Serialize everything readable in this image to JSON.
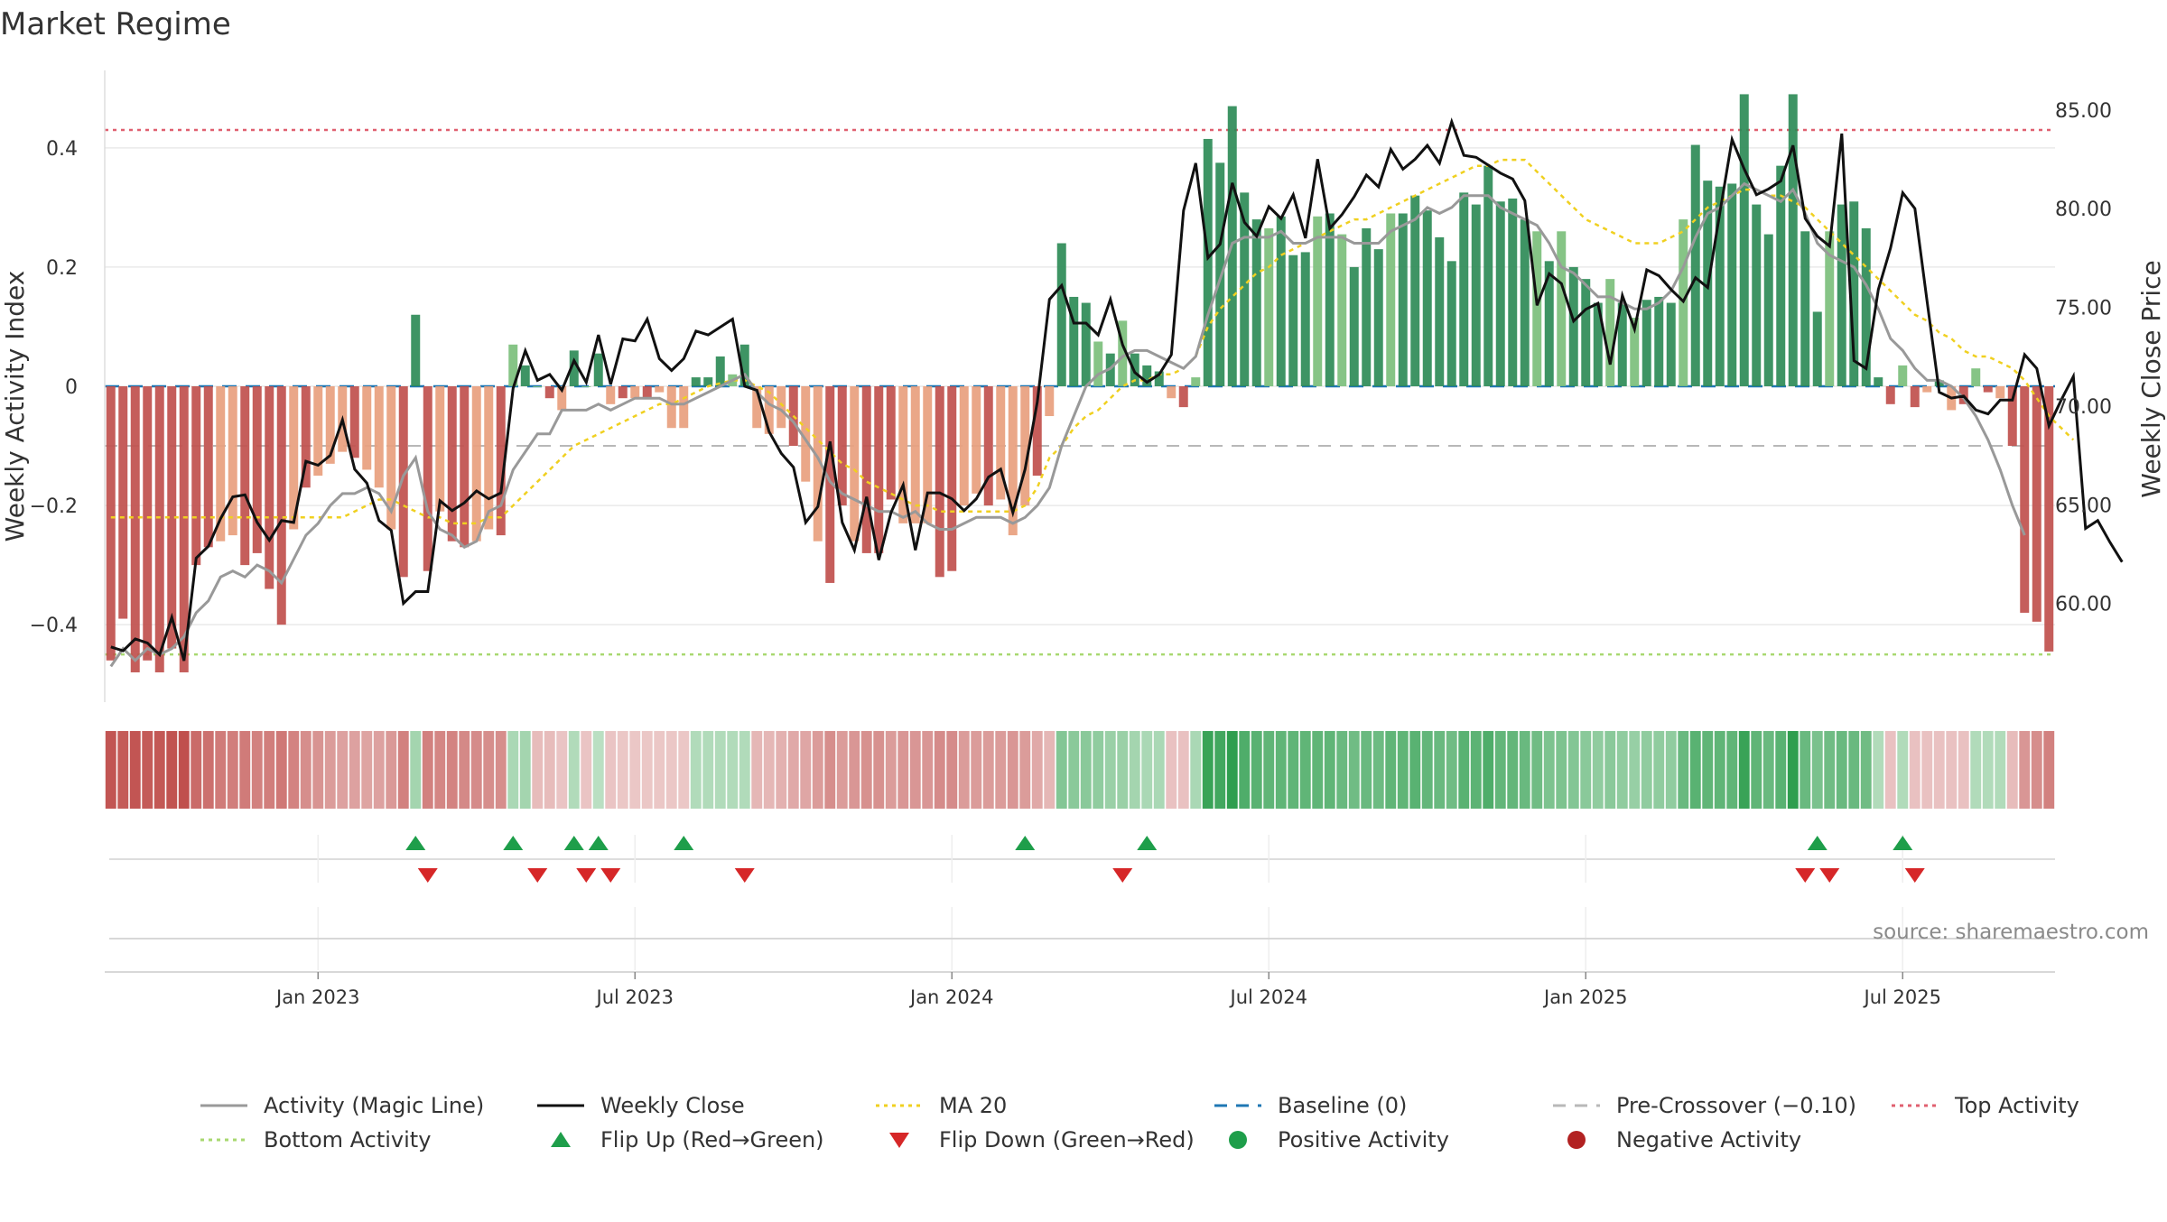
{
  "page": {
    "title": "Market Regime",
    "source": "source: sharemaestro.com"
  },
  "chart_data": {
    "type": "bar",
    "title": "Market Regime",
    "ylabel": "Weekly Activity Index",
    "y2label": "Weekly Close Price",
    "ylim": [
      -0.53,
      0.53
    ],
    "y2lim": [
      55.0,
      87.0
    ],
    "yticks": [
      {
        "value": 0.4,
        "label": "0.4"
      },
      {
        "value": 0.2,
        "label": "0.2"
      },
      {
        "value": 0,
        "label": "0"
      },
      {
        "value": -0.2,
        "label": "−0.2"
      },
      {
        "value": -0.4,
        "label": "−0.4"
      }
    ],
    "y2ticks": [
      {
        "value": 85,
        "label": "85.00"
      },
      {
        "value": 80,
        "label": "80.00"
      },
      {
        "value": 75,
        "label": "75.00"
      },
      {
        "value": 70,
        "label": "70.00"
      },
      {
        "value": 65,
        "label": "65.00"
      },
      {
        "value": 60,
        "label": "60.00"
      }
    ],
    "xticks": [
      {
        "index": 17,
        "label": "Jan 2023"
      },
      {
        "index": 43,
        "label": "Jul 2023"
      },
      {
        "index": 69,
        "label": "Jan 2024"
      },
      {
        "index": 95,
        "label": "Jul 2024"
      },
      {
        "index": 121,
        "label": "Jan 2025"
      },
      {
        "index": 147,
        "label": "Jul 2025"
      }
    ],
    "grid": true,
    "legend_position": "bottom",
    "colors": {
      "neg_dark": "#c0504d",
      "neg_light": "#e8a07e",
      "pos_dark": "#2e8b57",
      "pos_light": "#7cbf7c",
      "magic_line": "#999999",
      "weekly_close": "#111111",
      "ma20": "#f0d020",
      "baseline": "#1f77b4",
      "pre_crossover": "#b8b8b8",
      "top_activity": "#e06070",
      "bottom_activity": "#a8d870",
      "flip_up": "#1e9e4a",
      "flip_down": "#d62728",
      "positive_dot": "#1e9e4a",
      "negative_dot": "#b22222"
    },
    "levels": {
      "baseline": 0,
      "pre_crossover": -0.1,
      "top_activity": 0.43,
      "bottom_activity": -0.45
    },
    "activity": [
      -0.46,
      -0.39,
      -0.48,
      -0.46,
      -0.48,
      -0.44,
      -0.48,
      -0.3,
      -0.27,
      -0.26,
      -0.25,
      -0.3,
      -0.28,
      -0.34,
      -0.4,
      -0.24,
      -0.17,
      -0.15,
      -0.13,
      -0.11,
      -0.12,
      -0.14,
      -0.17,
      -0.24,
      -0.32,
      0.12,
      -0.31,
      -0.21,
      -0.26,
      -0.27,
      -0.26,
      -0.24,
      -0.25,
      0.07,
      0.035,
      -0.0,
      -0.02,
      -0.04,
      0.06,
      -0.0,
      0.055,
      -0.03,
      -0.02,
      -0.02,
      -0.02,
      -0.01,
      -0.07,
      -0.07,
      0.015,
      0.015,
      0.05,
      0.02,
      0.07,
      -0.07,
      -0.08,
      -0.07,
      -0.1,
      -0.16,
      -0.26,
      -0.33,
      -0.2,
      -0.26,
      -0.28,
      -0.28,
      -0.19,
      -0.23,
      -0.23,
      -0.23,
      -0.32,
      -0.31,
      -0.2,
      -0.18,
      -0.2,
      -0.19,
      -0.25,
      -0.2,
      -0.15,
      -0.05,
      0.24,
      0.15,
      0.14,
      0.075,
      0.055,
      0.11,
      0.055,
      0.035,
      0.025,
      -0.02,
      -0.035,
      0.015,
      0.415,
      0.375,
      0.47,
      0.325,
      0.28,
      0.265,
      0.285,
      0.22,
      0.225,
      0.285,
      0.29,
      0.255,
      0.2,
      0.265,
      0.23,
      0.29,
      0.29,
      0.32,
      0.295,
      0.25,
      0.21,
      0.325,
      0.305,
      0.37,
      0.31,
      0.315,
      0.28,
      0.26,
      0.21,
      0.26,
      0.2,
      0.18,
      0.14,
      0.18,
      0.14,
      0.115,
      0.145,
      0.15,
      0.14,
      0.28,
      0.405,
      0.345,
      0.335,
      0.34,
      0.49,
      0.305,
      0.255,
      0.37,
      0.49,
      0.26,
      0.125,
      0.26,
      0.305,
      0.31,
      0.265,
      0.015,
      -0.03,
      0.035,
      -0.035,
      -0.01,
      0.01,
      -0.04,
      -0.03,
      0.03,
      -0.01,
      -0.02,
      -0.1,
      -0.38,
      -0.395,
      -0.445
    ],
    "magic_line": [
      -0.47,
      -0.44,
      -0.46,
      -0.44,
      -0.45,
      -0.44,
      -0.42,
      -0.38,
      -0.36,
      -0.32,
      -0.31,
      -0.32,
      -0.3,
      -0.31,
      -0.33,
      -0.29,
      -0.25,
      -0.23,
      -0.2,
      -0.18,
      -0.18,
      -0.17,
      -0.18,
      -0.21,
      -0.15,
      -0.12,
      -0.21,
      -0.24,
      -0.25,
      -0.27,
      -0.26,
      -0.21,
      -0.2,
      -0.14,
      -0.11,
      -0.08,
      -0.08,
      -0.04,
      -0.04,
      -0.04,
      -0.03,
      -0.04,
      -0.03,
      -0.02,
      -0.02,
      -0.02,
      -0.03,
      -0.03,
      -0.02,
      -0.01,
      0.0,
      0.01,
      0.02,
      -0.01,
      -0.03,
      -0.04,
      -0.06,
      -0.09,
      -0.12,
      -0.16,
      -0.18,
      -0.19,
      -0.2,
      -0.21,
      -0.21,
      -0.22,
      -0.21,
      -0.23,
      -0.24,
      -0.24,
      -0.23,
      -0.22,
      -0.22,
      -0.22,
      -0.23,
      -0.22,
      -0.2,
      -0.17,
      -0.1,
      -0.05,
      0.0,
      0.02,
      0.03,
      0.05,
      0.06,
      0.06,
      0.05,
      0.04,
      0.03,
      0.05,
      0.12,
      0.18,
      0.24,
      0.25,
      0.25,
      0.25,
      0.26,
      0.24,
      0.24,
      0.25,
      0.25,
      0.25,
      0.24,
      0.24,
      0.24,
      0.26,
      0.27,
      0.28,
      0.3,
      0.29,
      0.3,
      0.32,
      0.32,
      0.32,
      0.3,
      0.29,
      0.28,
      0.27,
      0.24,
      0.2,
      0.19,
      0.17,
      0.15,
      0.15,
      0.14,
      0.13,
      0.13,
      0.14,
      0.16,
      0.2,
      0.25,
      0.29,
      0.3,
      0.32,
      0.34,
      0.33,
      0.32,
      0.31,
      0.33,
      0.29,
      0.24,
      0.22,
      0.21,
      0.2,
      0.17,
      0.13,
      0.08,
      0.06,
      0.03,
      0.01,
      0.01,
      0.0,
      -0.02,
      -0.05,
      -0.09,
      -0.14,
      -0.2,
      -0.25
    ],
    "weekly_close": [
      57.8,
      57.6,
      58.2,
      58.0,
      57.4,
      59.3,
      57.1,
      62.3,
      62.9,
      64.3,
      65.4,
      65.5,
      64.1,
      63.2,
      64.2,
      64.1,
      67.2,
      67.0,
      67.5,
      69.3,
      66.8,
      66.1,
      64.2,
      63.7,
      60.0,
      60.6,
      60.6,
      65.2,
      64.7,
      65.1,
      65.7,
      65.3,
      65.6,
      70.9,
      72.8,
      71.3,
      71.6,
      70.8,
      72.3,
      71.2,
      73.6,
      71.1,
      73.4,
      73.3,
      74.4,
      72.4,
      71.8,
      72.4,
      73.8,
      73.6,
      74.0,
      74.4,
      71.0,
      70.8,
      68.7,
      67.6,
      66.9,
      64.1,
      64.9,
      68.2,
      64.1,
      62.7,
      65.4,
      62.2,
      64.6,
      66.0,
      62.7,
      65.6,
      65.6,
      65.3,
      64.7,
      65.3,
      66.4,
      66.8,
      64.6,
      66.8,
      70.2,
      75.4,
      76.1,
      74.2,
      74.2,
      73.6,
      75.4,
      73.1,
      71.7,
      71.2,
      71.6,
      72.6,
      79.9,
      82.3,
      77.5,
      78.2,
      81.3,
      79.3,
      78.6,
      80.1,
      79.5,
      80.7,
      78.5,
      82.5,
      79.0,
      79.7,
      80.6,
      81.7,
      81.1,
      83.0,
      82.0,
      82.5,
      83.2,
      82.3,
      84.4,
      82.7,
      82.6,
      82.2,
      81.8,
      81.5,
      80.4,
      75.1,
      76.7,
      76.2,
      74.3,
      74.9,
      75.2,
      72.1,
      75.6,
      73.9,
      76.9,
      76.6,
      75.9,
      75.3,
      76.5,
      76.0,
      79.8,
      83.5,
      82.0,
      80.7,
      81.0,
      81.4,
      83.2,
      79.5,
      78.6,
      78.1,
      83.8,
      72.3,
      71.9,
      75.9,
      78.0,
      80.8,
      80.0,
      75.3,
      70.7,
      70.4,
      70.5,
      69.8,
      69.6,
      70.3,
      70.3,
      72.6,
      71.9,
      69.0,
      70.3,
      71.5,
      63.8,
      64.2,
      63.1,
      62.1
    ],
    "ma20": [
      -0.22,
      -0.22,
      -0.22,
      -0.22,
      -0.22,
      -0.22,
      -0.22,
      -0.22,
      -0.22,
      -0.22,
      -0.22,
      -0.22,
      -0.22,
      -0.22,
      -0.22,
      -0.22,
      -0.22,
      -0.22,
      -0.22,
      -0.22,
      -0.21,
      -0.2,
      -0.19,
      -0.19,
      -0.2,
      -0.21,
      -0.22,
      -0.22,
      -0.23,
      -0.23,
      -0.23,
      -0.22,
      -0.22,
      -0.2,
      -0.18,
      -0.16,
      -0.14,
      -0.12,
      -0.1,
      -0.09,
      -0.08,
      -0.07,
      -0.06,
      -0.05,
      -0.04,
      -0.03,
      -0.03,
      -0.02,
      -0.01,
      0.0,
      0.005,
      0.01,
      0.01,
      0.0,
      -0.01,
      -0.03,
      -0.05,
      -0.07,
      -0.09,
      -0.11,
      -0.13,
      -0.14,
      -0.16,
      -0.17,
      -0.18,
      -0.19,
      -0.2,
      -0.2,
      -0.21,
      -0.21,
      -0.21,
      -0.21,
      -0.21,
      -0.21,
      -0.21,
      -0.2,
      -0.17,
      -0.12,
      -0.1,
      -0.07,
      -0.05,
      -0.04,
      -0.02,
      -0.0,
      0.01,
      0.01,
      0.02,
      0.02,
      0.03,
      0.05,
      0.1,
      0.13,
      0.15,
      0.17,
      0.19,
      0.2,
      0.22,
      0.23,
      0.24,
      0.25,
      0.26,
      0.27,
      0.28,
      0.28,
      0.29,
      0.3,
      0.31,
      0.32,
      0.33,
      0.34,
      0.35,
      0.36,
      0.37,
      0.37,
      0.38,
      0.38,
      0.38,
      0.36,
      0.34,
      0.32,
      0.3,
      0.28,
      0.27,
      0.26,
      0.25,
      0.24,
      0.24,
      0.24,
      0.25,
      0.26,
      0.28,
      0.3,
      0.31,
      0.32,
      0.33,
      0.33,
      0.32,
      0.32,
      0.31,
      0.3,
      0.28,
      0.26,
      0.24,
      0.22,
      0.2,
      0.18,
      0.16,
      0.14,
      0.12,
      0.11,
      0.09,
      0.08,
      0.06,
      0.05,
      0.05,
      0.04,
      0.03,
      0.01,
      -0.02,
      -0.05,
      -0.07,
      -0.09
    ],
    "regime_strip": [
      -0.46,
      -0.44,
      -0.46,
      -0.44,
      -0.45,
      -0.47,
      -0.48,
      -0.38,
      -0.36,
      -0.32,
      -0.31,
      -0.32,
      -0.3,
      -0.31,
      -0.33,
      -0.29,
      -0.25,
      -0.23,
      -0.2,
      -0.18,
      -0.18,
      -0.17,
      -0.18,
      -0.21,
      -0.3,
      0.12,
      -0.3,
      -0.28,
      -0.29,
      -0.27,
      -0.26,
      -0.25,
      -0.25,
      0.1,
      0.12,
      -0.08,
      -0.08,
      -0.05,
      0.08,
      -0.05,
      0.05,
      -0.05,
      -0.04,
      -0.04,
      -0.04,
      -0.04,
      -0.04,
      -0.04,
      0.08,
      0.08,
      0.08,
      0.08,
      0.08,
      -0.1,
      -0.1,
      -0.12,
      -0.15,
      -0.16,
      -0.2,
      -0.25,
      -0.2,
      -0.22,
      -0.24,
      -0.24,
      -0.2,
      -0.22,
      -0.22,
      -0.22,
      -0.26,
      -0.26,
      -0.2,
      -0.2,
      -0.2,
      -0.2,
      -0.22,
      -0.2,
      -0.15,
      -0.1,
      0.22,
      0.2,
      0.2,
      0.18,
      0.15,
      0.15,
      0.12,
      0.1,
      0.1,
      -0.06,
      -0.06,
      0.1,
      0.45,
      0.42,
      0.48,
      0.38,
      0.35,
      0.33,
      0.33,
      0.33,
      0.33,
      0.33,
      0.33,
      0.3,
      0.28,
      0.3,
      0.29,
      0.33,
      0.33,
      0.35,
      0.32,
      0.3,
      0.28,
      0.35,
      0.34,
      0.38,
      0.32,
      0.32,
      0.3,
      0.28,
      0.24,
      0.24,
      0.22,
      0.2,
      0.18,
      0.2,
      0.18,
      0.16,
      0.18,
      0.18,
      0.18,
      0.3,
      0.35,
      0.33,
      0.33,
      0.33,
      0.45,
      0.33,
      0.3,
      0.35,
      0.48,
      0.3,
      0.25,
      0.28,
      0.3,
      0.3,
      0.28,
      0.08,
      -0.06,
      0.08,
      -0.06,
      -0.06,
      -0.06,
      -0.06,
      -0.06,
      0.08,
      0.08,
      0.08,
      -0.08,
      -0.22,
      -0.25,
      -0.3
    ],
    "flip_up_weeks": [
      25,
      33,
      38,
      40,
      47,
      75,
      85,
      140,
      147
    ],
    "flip_down_weeks": [
      26,
      35,
      39,
      41,
      52,
      83,
      139,
      141,
      148
    ],
    "series": [
      {
        "name": "Activity (Magic Line)",
        "style": "solid",
        "color": "#999999"
      },
      {
        "name": "Weekly Close",
        "style": "solid",
        "color": "#111111"
      },
      {
        "name": "MA 20",
        "style": "dotted",
        "color": "#f0d020"
      },
      {
        "name": "Baseline (0)",
        "style": "dashed",
        "color": "#1f77b4"
      },
      {
        "name": "Pre-Crossover (−0.10)",
        "style": "dashed",
        "color": "#b8b8b8"
      },
      {
        "name": "Top Activity",
        "style": "dotted",
        "color": "#e06070"
      },
      {
        "name": "Bottom Activity",
        "style": "dotted",
        "color": "#a8d870"
      },
      {
        "name": "Flip Up (Red→Green)",
        "style": "triangle-up",
        "color": "#1e9e4a"
      },
      {
        "name": "Flip Down (Green→Red)",
        "style": "triangle-down",
        "color": "#d62728"
      },
      {
        "name": "Positive Activity",
        "style": "dot",
        "color": "#1e9e4a"
      },
      {
        "name": "Negative Activity",
        "style": "dot",
        "color": "#b22222"
      }
    ]
  }
}
